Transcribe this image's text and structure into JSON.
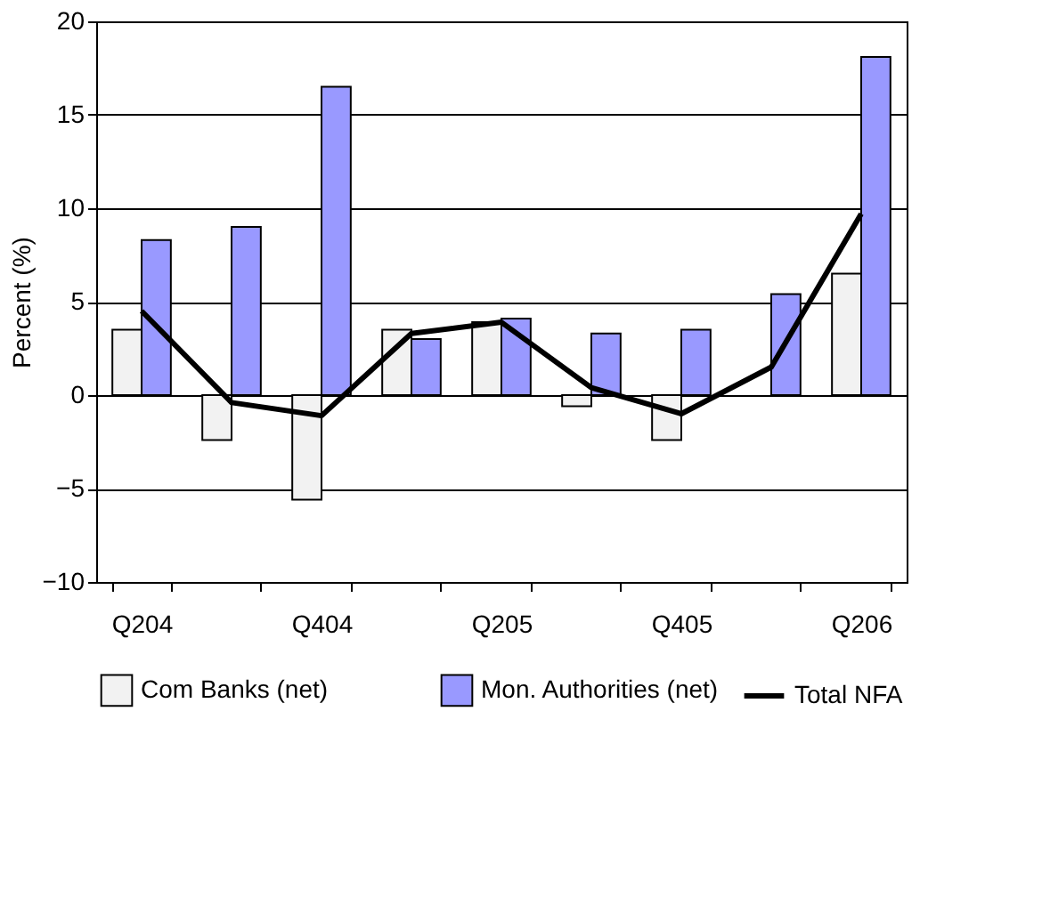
{
  "chart_data": {
    "type": "bar",
    "ylabel": "Percent (%)",
    "categories": [
      "Q204",
      null,
      "Q404",
      null,
      "Q205",
      null,
      "Q405",
      null,
      "Q206"
    ],
    "series": [
      {
        "name": "Com Banks (net)",
        "color": "#f2f2f2",
        "values": [
          3.5,
          -2.4,
          -5.6,
          3.5,
          3.9,
          -0.6,
          -2.4,
          null,
          6.5
        ]
      },
      {
        "name": "Mon. Authorities (net)",
        "color": "#9999ff",
        "values": [
          8.3,
          9.0,
          16.5,
          3.0,
          4.1,
          3.3,
          3.5,
          5.4,
          18.1
        ]
      },
      {
        "name": "Total NFA",
        "type": "line",
        "color": "#000000",
        "values": [
          4.5,
          -0.4,
          -1.1,
          3.3,
          3.9,
          0.4,
          -1.0,
          1.5,
          9.7
        ]
      }
    ],
    "ylim": [
      -10,
      20
    ],
    "yticks": [
      -10,
      -5,
      0,
      5,
      10,
      15,
      20
    ],
    "grid": "y",
    "legend": "bottom",
    "marker": "none",
    "line_style": "solid"
  }
}
